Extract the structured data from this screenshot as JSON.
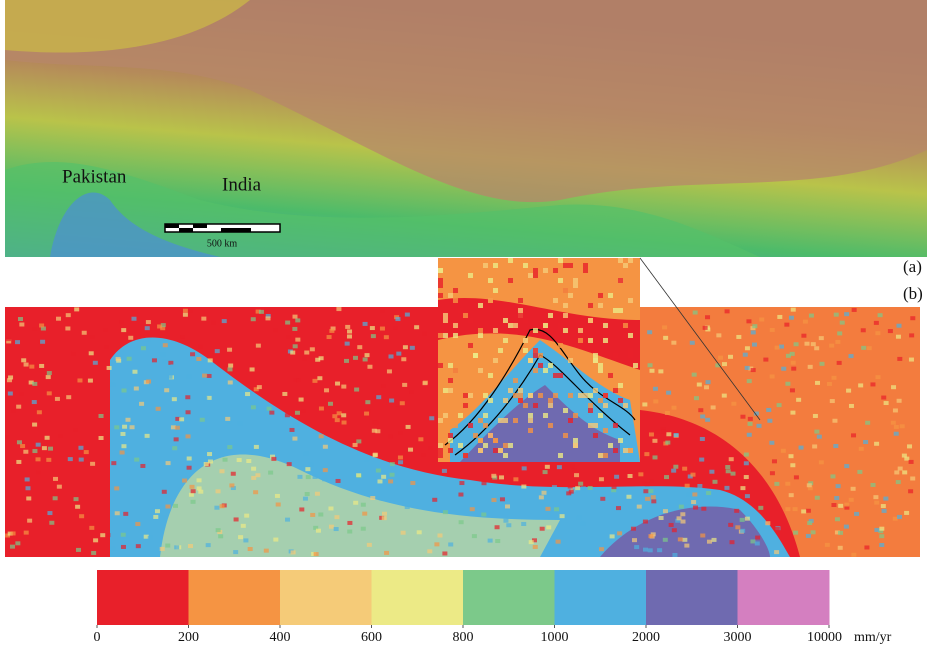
{
  "panel_a": {
    "labels": [
      "Pakistan",
      "India"
    ],
    "scale_bar": "500 km",
    "tag": "(a)"
  },
  "panel_b": {
    "tag": "(b)"
  },
  "legend": {
    "colors": [
      "#e8202a",
      "#f59443",
      "#f5cb78",
      "#ecea86",
      "#7cc98a",
      "#4fb0e0",
      "#6f6ab0",
      "#d47fc0"
    ],
    "ticks": [
      0,
      200,
      400,
      600,
      800,
      1000,
      2000,
      3000,
      10000
    ],
    "unit": "mm/yr"
  }
}
